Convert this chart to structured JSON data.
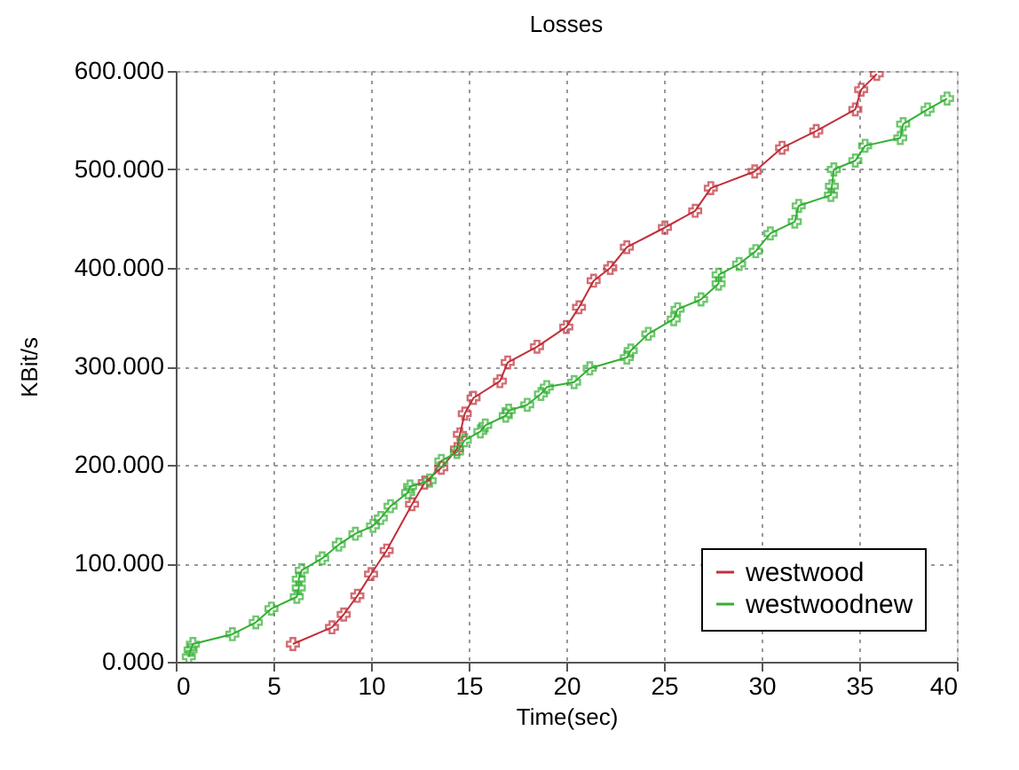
{
  "chart_data": {
    "type": "line",
    "title": "Losses",
    "xlabel": "Time(sec)",
    "ylabel": "KBit/s",
    "xlim": [
      0,
      40
    ],
    "xticks": [
      0,
      5,
      10,
      15,
      20,
      25,
      30,
      35,
      40
    ],
    "ylim": [
      0,
      600
    ],
    "yticks": [
      {
        "value": 0,
        "label": "0.000"
      },
      {
        "value": 100,
        "label": "100.000"
      },
      {
        "value": 200,
        "label": "200.000"
      },
      {
        "value": 300,
        "label": "300.000"
      },
      {
        "value": 400,
        "label": "400.000"
      },
      {
        "value": 500,
        "label": "500.000"
      },
      {
        "value": 600,
        "label": "600.000"
      }
    ],
    "grid": true,
    "legend": "bottom right",
    "marker": "cross",
    "line_style": "solid",
    "series": [
      {
        "name": "westwood",
        "color": "#c0303a",
        "x": [
          6.0,
          8.0,
          8.6,
          9.3,
          10.0,
          10.8,
          12.1,
          12.75,
          13.6,
          14.4,
          14.55,
          14.8,
          15.25,
          16.6,
          17.0,
          18.5,
          20.0,
          20.65,
          21.4,
          22.25,
          23.1,
          25.05,
          26.6,
          27.4,
          29.65,
          31.05,
          32.8,
          34.8,
          35.1,
          35.9
        ],
        "values": [
          18,
          35,
          48,
          67,
          89,
          113,
          160,
          182,
          197,
          216,
          231,
          252,
          268,
          285,
          304,
          320,
          340,
          360,
          387,
          400,
          421,
          441,
          458,
          481,
          498,
          522,
          539,
          561,
          581,
          597
        ]
      },
      {
        "name": "westwoodnew",
        "color": "#33b033",
        "x": [
          0.67,
          0.76,
          0.88,
          2.9,
          4.1,
          4.9,
          6.2,
          6.3,
          6.3,
          6.45,
          7.5,
          8.35,
          9.2,
          10.1,
          10.5,
          11.0,
          11.9,
          12.0,
          13.0,
          13.6,
          14.4,
          14.8,
          15.6,
          15.85,
          16.9,
          17.05,
          18.0,
          18.7,
          19.0,
          20.4,
          21.2,
          23.1,
          23.3,
          24.2,
          25.5,
          25.7,
          26.9,
          27.8,
          27.8,
          28.85,
          29.7,
          30.45,
          31.7,
          31.9,
          33.55,
          33.6,
          33.7,
          34.8,
          35.3,
          37.1,
          37.25,
          38.5,
          39.5
        ],
        "values": [
          5,
          12,
          18,
          28,
          40,
          54,
          66,
          75,
          84,
          93,
          105,
          119,
          130,
          138,
          146,
          158,
          172,
          178,
          184,
          204,
          213,
          225,
          234,
          240,
          250,
          255,
          261,
          272,
          279,
          284,
          298,
          309,
          316,
          333,
          348,
          358,
          368,
          384,
          393,
          404,
          417,
          435,
          447,
          463,
          474,
          483,
          500,
          509,
          524,
          532,
          546,
          561,
          572
        ]
      }
    ]
  }
}
